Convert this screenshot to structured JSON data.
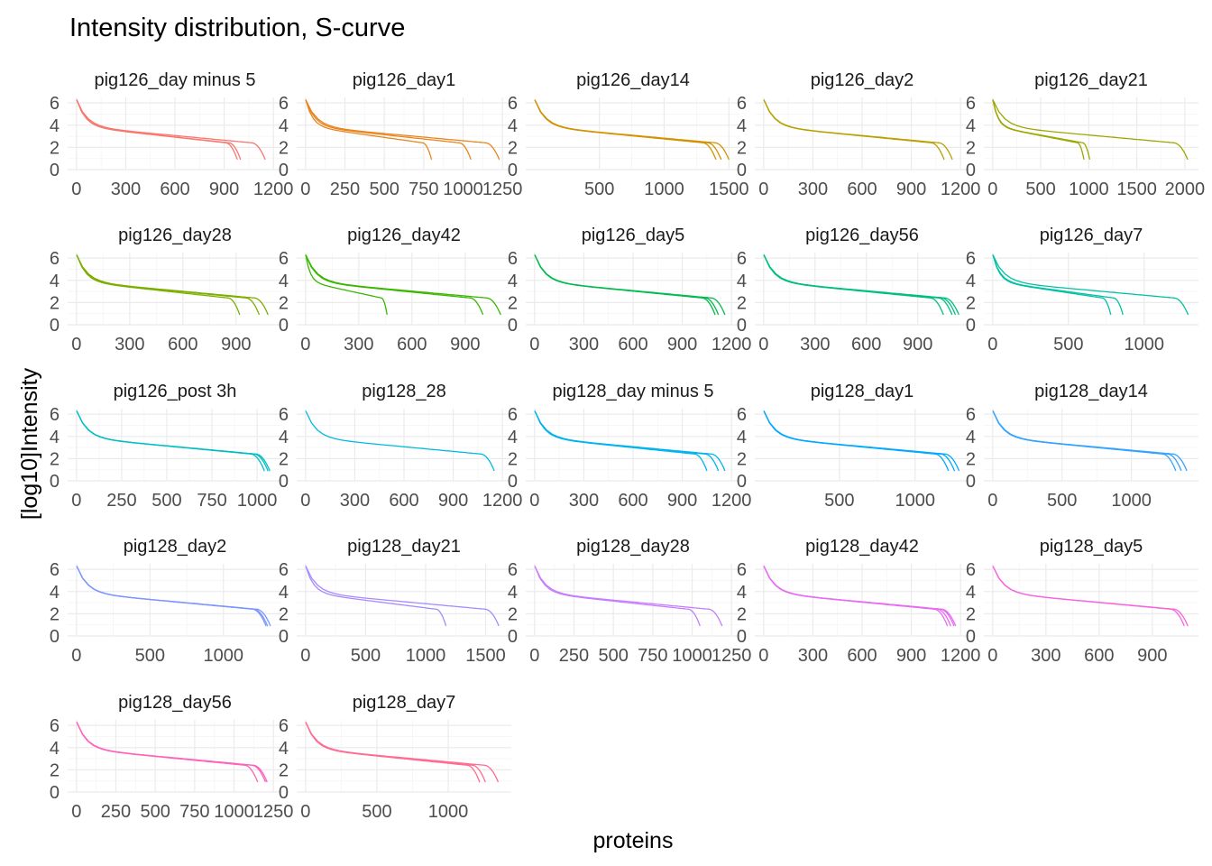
{
  "chart_data": {
    "type": "line",
    "title": "Intensity distribution, S-curve",
    "xlabel": "proteins",
    "ylabel": "[log10]Intensity",
    "ylim": [
      0,
      6.5
    ],
    "y_ticks": [
      0,
      2,
      4,
      6
    ],
    "grid": true,
    "legend": "none",
    "facets": [
      {
        "name": "pig126_day minus 5",
        "color": "#F8766D",
        "x_ticks": [
          0,
          300,
          600,
          900,
          1200
        ],
        "xmax": 1200,
        "curves": [
          980,
          1000,
          1150
        ]
      },
      {
        "name": "pig126_day1",
        "color": "#E7851E",
        "x_ticks": [
          0,
          250,
          500,
          750,
          1000,
          1250
        ],
        "xmax": 1250,
        "curves": [
          800,
          1050,
          1230
        ]
      },
      {
        "name": "pig126_day14",
        "color": "#D39200",
        "x_ticks": [
          500,
          1000,
          1500
        ],
        "xmax": 1520,
        "curves": [
          1400,
          1440,
          1500
        ]
      },
      {
        "name": "pig126_day2",
        "color": "#B9A000",
        "x_ticks": [
          0,
          300,
          600,
          900,
          1200
        ],
        "xmax": 1200,
        "curves": [
          1100,
          1150
        ]
      },
      {
        "name": "pig126_day21",
        "color": "#9CA700",
        "x_ticks": [
          0,
          500,
          1000,
          1500,
          2000
        ],
        "xmax": 2050,
        "curves": [
          950,
          1010,
          2030
        ]
      },
      {
        "name": "pig126_day28",
        "color": "#7CAE00",
        "x_ticks": [
          0,
          300,
          600,
          900
        ],
        "xmax": 1110,
        "curves": [
          920,
          1030,
          1080
        ]
      },
      {
        "name": "pig126_day42",
        "color": "#39B600",
        "x_ticks": [
          0,
          300,
          600,
          900
        ],
        "xmax": 1110,
        "curves": [
          460,
          1000,
          1100
        ]
      },
      {
        "name": "pig126_day5",
        "color": "#00BB4E",
        "x_ticks": [
          0,
          300,
          600,
          900,
          1200
        ],
        "xmax": 1200,
        "curves": [
          1100,
          1120,
          1160
        ]
      },
      {
        "name": "pig126_day56",
        "color": "#00BF7D",
        "x_ticks": [
          0,
          300,
          600,
          900
        ],
        "xmax": 1150,
        "curves": [
          1050,
          1100,
          1120,
          1140
        ]
      },
      {
        "name": "pig126_day7",
        "color": "#00C1A3",
        "x_ticks": [
          0,
          500,
          1000
        ],
        "xmax": 1300,
        "curves": [
          780,
          860,
          1290
        ]
      },
      {
        "name": "pig126_post 3h",
        "color": "#00BFC4",
        "x_ticks": [
          0,
          250,
          500,
          750,
          1000
        ],
        "xmax": 1090,
        "curves": [
          1040,
          1060,
          1070
        ]
      },
      {
        "name": "pig128_28",
        "color": "#00BAE0",
        "x_ticks": [
          0,
          300,
          600,
          900,
          1200
        ],
        "xmax": 1200,
        "curves": [
          1150
        ]
      },
      {
        "name": "pig128_day minus 5",
        "color": "#00B4EF",
        "x_ticks": [
          0,
          300,
          600,
          900,
          1200
        ],
        "xmax": 1200,
        "curves": [
          1050,
          1120,
          1160
        ]
      },
      {
        "name": "pig128_day1",
        "color": "#00A9FF",
        "x_ticks": [
          500,
          1000
        ],
        "xmax": 1300,
        "curves": [
          1220,
          1260,
          1290
        ]
      },
      {
        "name": "pig128_day14",
        "color": "#35A2FF",
        "x_ticks": [
          0,
          500,
          1000
        ],
        "xmax": 1420,
        "curves": [
          1320,
          1360,
          1400
        ]
      },
      {
        "name": "pig128_day2",
        "color": "#7C96FF",
        "x_ticks": [
          0,
          500,
          1000
        ],
        "xmax": 1340,
        "curves": [
          1290,
          1300,
          1320
        ]
      },
      {
        "name": "pig128_day21",
        "color": "#A58AFF",
        "x_ticks": [
          0,
          500,
          1000,
          1500
        ],
        "xmax": 1640,
        "curves": [
          1170,
          1610
        ]
      },
      {
        "name": "pig128_day28",
        "color": "#C77CFF",
        "x_ticks": [
          0,
          250,
          500,
          750,
          1000,
          1250
        ],
        "xmax": 1250,
        "curves": [
          1050,
          1190
        ]
      },
      {
        "name": "pig128_day42",
        "color": "#E76BF3",
        "x_ticks": [
          0,
          300,
          600,
          900,
          1200
        ],
        "xmax": 1200,
        "curves": [
          1120,
          1140,
          1160,
          1170
        ]
      },
      {
        "name": "pig128_day5",
        "color": "#F763E0",
        "x_ticks": [
          0,
          300,
          600,
          900
        ],
        "xmax": 1110,
        "curves": [
          1080,
          1100
        ]
      },
      {
        "name": "pig128_day56",
        "color": "#FF62BC",
        "x_ticks": [
          0,
          250,
          500,
          750,
          1000,
          1250
        ],
        "xmax": 1250,
        "curves": [
          1150,
          1200,
          1210
        ]
      },
      {
        "name": "pig128_day7",
        "color": "#FF6C91",
        "x_ticks": [
          0,
          500,
          1000
        ],
        "xmax": 1380,
        "curves": [
          1220,
          1260,
          1350
        ]
      }
    ]
  }
}
